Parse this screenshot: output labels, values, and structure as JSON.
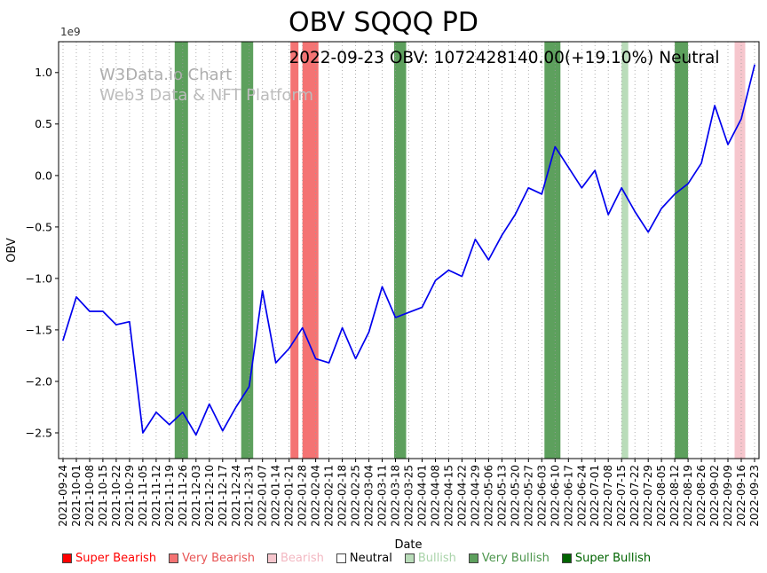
{
  "title": "OBV SQQQ PD",
  "annotation": "2022-09-23 OBV: 1072428140.00(+19.10%) Neutral",
  "watermark": {
    "line1": "W3Data.io Chart",
    "line2": "Web3 Data & NFT Platform"
  },
  "chart_data": {
    "type": "line",
    "title": "OBV SQQQ PD",
    "xlabel": "Date",
    "ylabel": "OBV",
    "y_offset_label": "1e9",
    "values_unit": "1e9",
    "ylim": [
      -2.75,
      1.3
    ],
    "grid": "vertical-dotted",
    "legend_position": "bottom",
    "yticks": [
      {
        "value": 1.0,
        "label": "1.0"
      },
      {
        "value": 0.5,
        "label": "0.5"
      },
      {
        "value": 0.0,
        "label": "0.0"
      },
      {
        "value": -0.5,
        "label": "−0.5"
      },
      {
        "value": -1.0,
        "label": "−1.0"
      },
      {
        "value": -1.5,
        "label": "−1.5"
      },
      {
        "value": -2.0,
        "label": "−2.0"
      },
      {
        "value": -2.5,
        "label": "−2.5"
      }
    ],
    "x": [
      "2021-09-24",
      "2021-10-01",
      "2021-10-08",
      "2021-10-15",
      "2021-10-22",
      "2021-10-29",
      "2021-11-05",
      "2021-11-12",
      "2021-11-19",
      "2021-11-26",
      "2021-12-03",
      "2021-12-10",
      "2021-12-17",
      "2021-12-24",
      "2021-12-31",
      "2022-01-07",
      "2022-01-14",
      "2022-01-21",
      "2022-01-28",
      "2022-02-04",
      "2022-02-11",
      "2022-02-18",
      "2022-02-25",
      "2022-03-04",
      "2022-03-11",
      "2022-03-18",
      "2022-03-25",
      "2022-04-01",
      "2022-04-08",
      "2022-04-15",
      "2022-04-22",
      "2022-04-29",
      "2022-05-06",
      "2022-05-13",
      "2022-05-20",
      "2022-05-27",
      "2022-06-03",
      "2022-06-10",
      "2022-06-17",
      "2022-06-24",
      "2022-07-01",
      "2022-07-08",
      "2022-07-15",
      "2022-07-22",
      "2022-07-29",
      "2022-08-05",
      "2022-08-12",
      "2022-08-19",
      "2022-08-26",
      "2022-09-02",
      "2022-09-09",
      "2022-09-16",
      "2022-09-23"
    ],
    "series": [
      {
        "name": "OBV",
        "color": "#0000ee",
        "values": [
          -1.6,
          -1.18,
          -1.32,
          -1.32,
          -1.45,
          -1.42,
          -2.5,
          -2.3,
          -2.42,
          -2.3,
          -2.52,
          -2.22,
          -2.48,
          -2.25,
          -2.05,
          -1.12,
          -1.82,
          -1.68,
          -1.48,
          -1.78,
          -1.82,
          -1.48,
          -1.78,
          -1.52,
          -1.08,
          -1.38,
          -1.33,
          -1.28,
          -1.02,
          -0.92,
          -0.98,
          -0.62,
          -0.82,
          -0.58,
          -0.38,
          -0.12,
          -0.18,
          0.28,
          0.08,
          -0.12,
          0.05,
          -0.38,
          -0.12,
          -0.35,
          -0.55,
          -0.32,
          -0.18,
          -0.08,
          0.12,
          0.68,
          0.3,
          0.55,
          1.0724
        ]
      }
    ],
    "bands": [
      {
        "x_start": 8.4,
        "x_end": 9.4,
        "sentiment": "Very Bullish",
        "color": "#5da05d"
      },
      {
        "x_start": 13.4,
        "x_end": 14.3,
        "sentiment": "Very Bullish",
        "color": "#5da05d"
      },
      {
        "x_start": 17.1,
        "x_end": 17.7,
        "sentiment": "Very Bearish",
        "color": "#f47373"
      },
      {
        "x_start": 18.0,
        "x_end": 19.2,
        "sentiment": "Very Bearish",
        "color": "#f47373"
      },
      {
        "x_start": 24.9,
        "x_end": 25.8,
        "sentiment": "Very Bullish",
        "color": "#5da05d"
      },
      {
        "x_start": 36.2,
        "x_end": 37.4,
        "sentiment": "Very Bullish",
        "color": "#5da05d"
      },
      {
        "x_start": 42.0,
        "x_end": 42.5,
        "sentiment": "Bullish",
        "color": "#b9dcb9"
      },
      {
        "x_start": 46.0,
        "x_end": 47.0,
        "sentiment": "Very Bullish",
        "color": "#5da05d"
      },
      {
        "x_start": 50.5,
        "x_end": 51.3,
        "sentiment": "Bearish",
        "color": "#f6c6cd"
      }
    ],
    "legend": [
      {
        "label": "Super Bearish",
        "color": "#ff0000",
        "text_color": "#ff0000"
      },
      {
        "label": "Very Bearish",
        "color": "#f47373",
        "text_color": "#e85555"
      },
      {
        "label": "Bearish",
        "color": "#f6c6cd",
        "text_color": "#f3b8c2"
      },
      {
        "label": "Neutral",
        "color": "#ffffff",
        "text_color": "#000000"
      },
      {
        "label": "Bullish",
        "color": "#b9dcb9",
        "text_color": "#a9d3a9"
      },
      {
        "label": "Very Bullish",
        "color": "#5da05d",
        "text_color": "#4d964d"
      },
      {
        "label": "Super Bullish",
        "color": "#006400",
        "text_color": "#006400"
      }
    ],
    "last_point": {
      "date": "2022-09-23",
      "obv": 1072428140.0,
      "change_pct": 19.1,
      "signal": "Neutral"
    }
  }
}
